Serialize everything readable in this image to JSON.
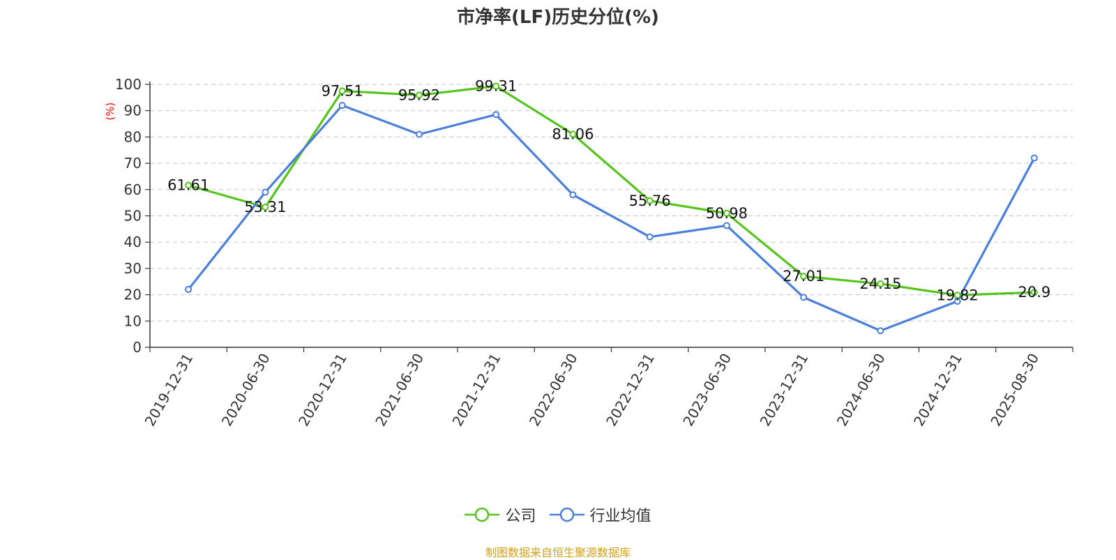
{
  "chart_data": {
    "type": "line",
    "title": "市净率(LF)历史分位(%)",
    "ylabel": "(%)",
    "xlabel": "",
    "categories": [
      "2019-12-31",
      "2020-06-30",
      "2020-12-31",
      "2021-06-30",
      "2021-12-31",
      "2022-06-30",
      "2022-12-31",
      "2023-06-30",
      "2023-12-31",
      "2024-06-30",
      "2024-12-31",
      "2025-08-30"
    ],
    "ylim": [
      0,
      100
    ],
    "yticks": [
      0,
      10,
      20,
      30,
      40,
      50,
      60,
      70,
      80,
      90,
      100
    ],
    "grid": true,
    "legend_position": "bottom",
    "series": [
      {
        "name": "公司",
        "color": "#52c41a",
        "show_labels": true,
        "values": [
          61.61,
          53.31,
          97.51,
          95.92,
          99.31,
          81.06,
          55.76,
          50.98,
          27.01,
          24.15,
          19.82,
          20.9
        ],
        "labels": [
          "61.61",
          "53.31",
          "97.51",
          "95.92",
          "99.31",
          "81.06",
          "55.76",
          "50.98",
          "27.01",
          "24.15",
          "19.82",
          "20.9"
        ]
      },
      {
        "name": "行业均值",
        "color": "#4a7fdc",
        "show_labels": false,
        "values": [
          22,
          59,
          92,
          81,
          88.5,
          58,
          42,
          46.3,
          19,
          6.3,
          17.5,
          72
        ]
      }
    ]
  },
  "source_note": "制图数据来自恒生聚源数据库"
}
